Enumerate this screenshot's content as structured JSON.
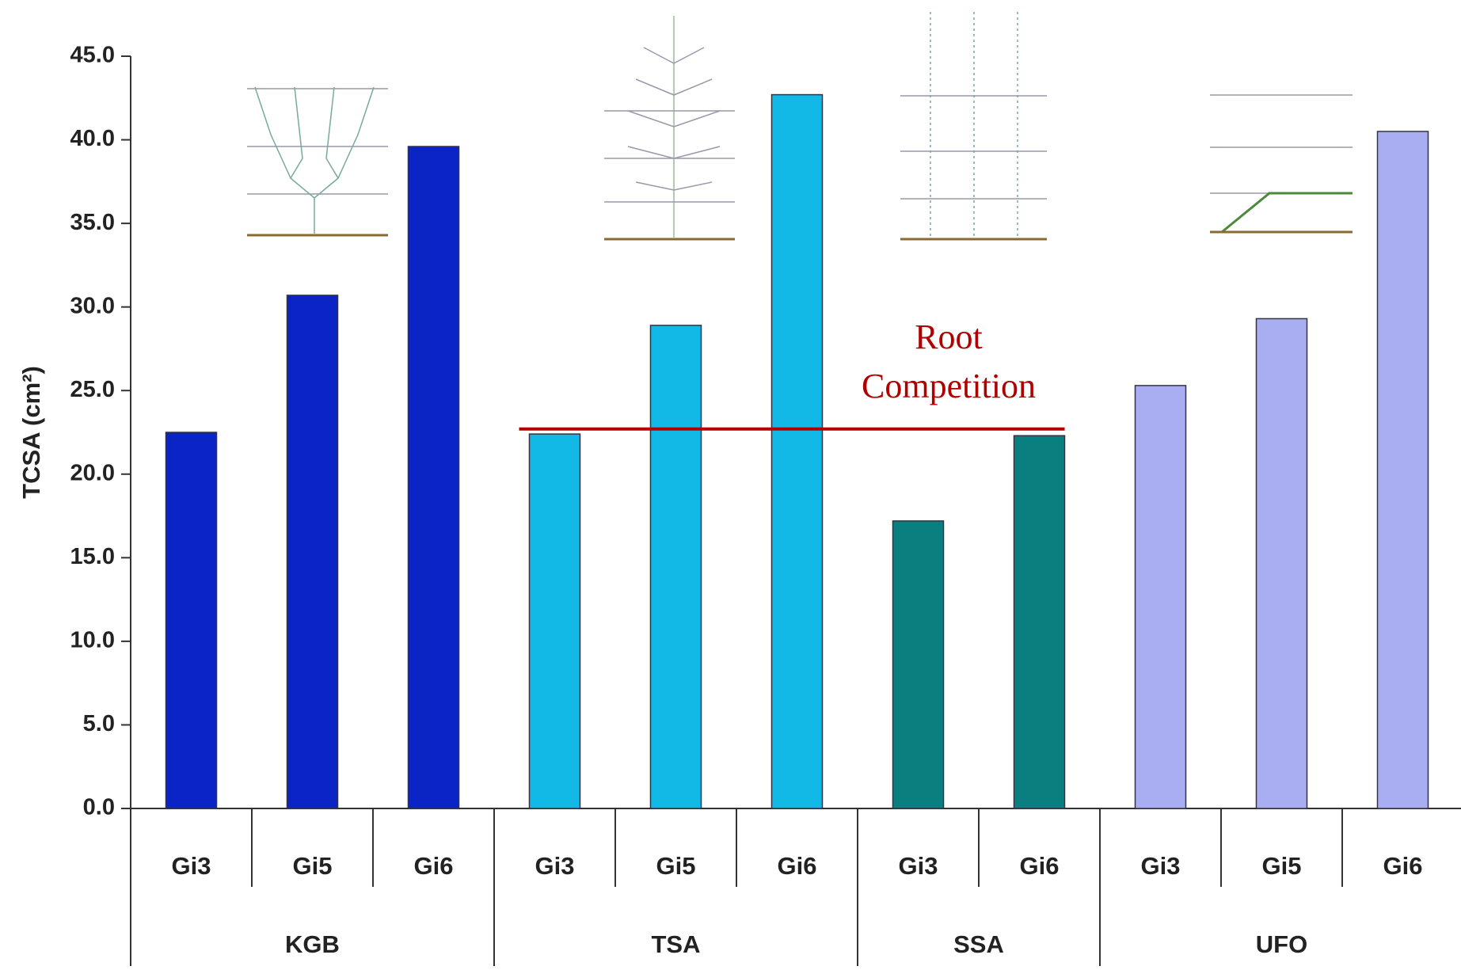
{
  "chart_data": {
    "type": "bar",
    "y_label": "TCSA (cm²)",
    "ylim": [
      0,
      45
    ],
    "yticks": [
      {
        "value": 0,
        "label": "0.0"
      },
      {
        "value": 5,
        "label": "5.0"
      },
      {
        "value": 10,
        "label": "10.0"
      },
      {
        "value": 15,
        "label": "15.0"
      },
      {
        "value": 20,
        "label": "20.0"
      },
      {
        "value": 25,
        "label": "25.0"
      },
      {
        "value": 30,
        "label": "30.0"
      },
      {
        "value": 35,
        "label": "35.0"
      },
      {
        "value": 40,
        "label": "40.0"
      },
      {
        "value": 45,
        "label": "45.0"
      }
    ],
    "groups": [
      {
        "name": "KGB",
        "color": "#0b24c6",
        "categories": [
          "Gi3",
          "Gi5",
          "Gi6"
        ],
        "values": [
          22.5,
          30.7,
          39.6
        ]
      },
      {
        "name": "TSA",
        "color": "#12b9e6",
        "categories": [
          "Gi3",
          "Gi5",
          "Gi6"
        ],
        "values": [
          22.4,
          28.9,
          42.7
        ]
      },
      {
        "name": "SSA",
        "color": "#0a7f80",
        "categories": [
          "Gi3",
          "Gi6"
        ],
        "values": [
          17.2,
          22.3
        ]
      },
      {
        "name": "UFO",
        "color": "#a9aef2",
        "categories": [
          "Gi3",
          "Gi5",
          "Gi6"
        ],
        "values": [
          25.3,
          29.3,
          40.5
        ]
      }
    ],
    "annotation": {
      "lines": [
        "Root",
        "Competition"
      ],
      "y": 22.7,
      "color": "#b00000"
    }
  }
}
